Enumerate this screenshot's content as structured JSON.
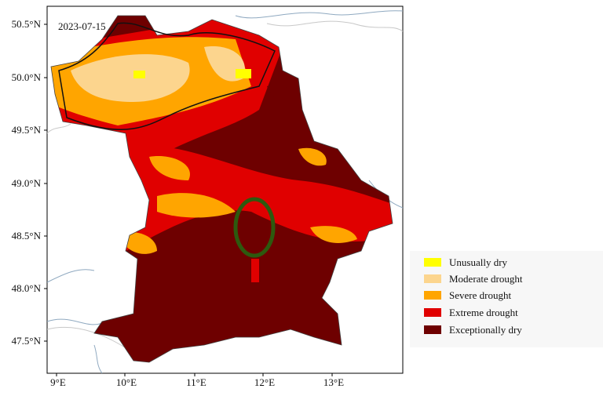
{
  "date_label": "2023-07-15",
  "y_axis_labels": [
    "50.5°N",
    "50.0°N",
    "49.5°N",
    "49.0°N",
    "48.5°N",
    "48.0°N",
    "47.5°N"
  ],
  "x_axis_labels": [
    "9°E",
    "10°E",
    "11°E",
    "12°E",
    "13°E"
  ],
  "legend": [
    "Unusually dry",
    "Moderate drought",
    "Severe drought",
    "Extreme drought",
    "Exceptionally dry"
  ]
}
